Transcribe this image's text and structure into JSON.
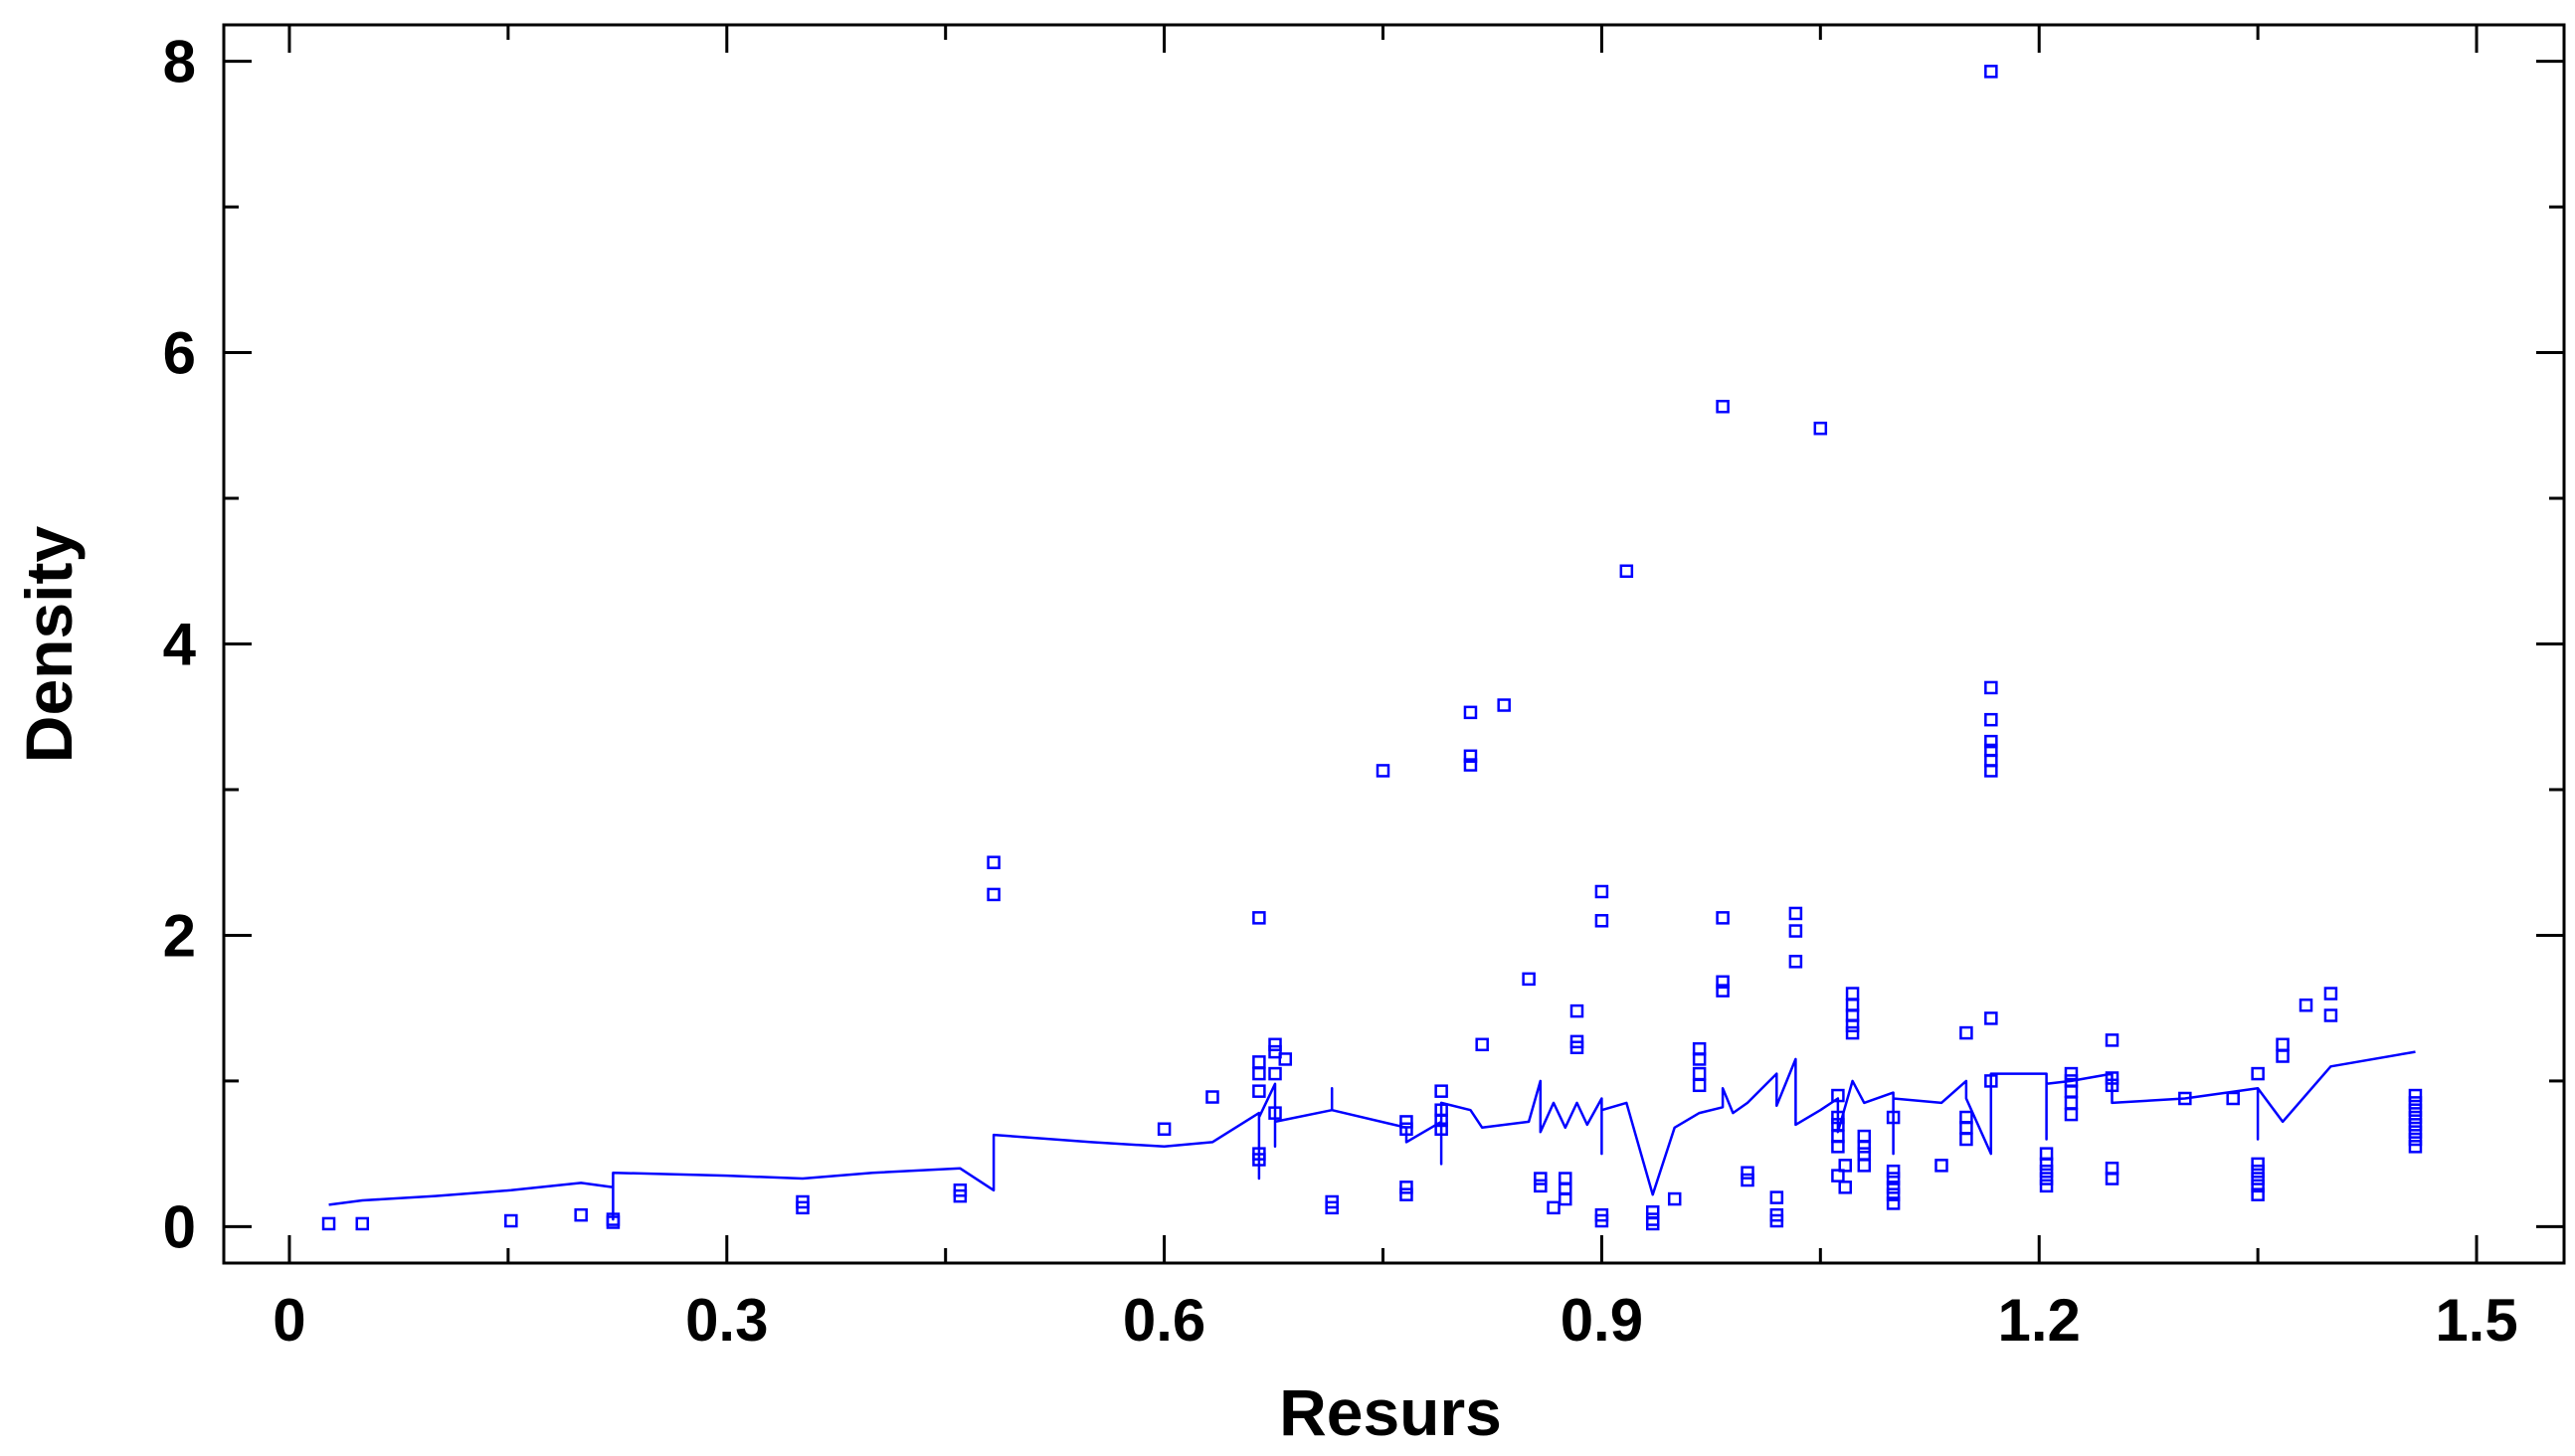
{
  "chart_data": {
    "type": "scatter",
    "xlabel": "Resurs",
    "ylabel": "Density",
    "xlim": [
      -0.045,
      1.56
    ],
    "ylim": [
      -0.25,
      8.25
    ],
    "x_ticks": [
      0,
      0.3,
      0.6,
      0.9,
      1.2,
      1.5
    ],
    "x_tick_labels": [
      "0",
      "0.3",
      "0.6",
      "0.9",
      "1.2",
      "1.5"
    ],
    "y_ticks": [
      0,
      2,
      4,
      6,
      8
    ],
    "y_tick_labels": [
      "0",
      "2",
      "4",
      "6",
      "8"
    ],
    "colors": {
      "series": "#0000ff",
      "axis": "#000000",
      "background": "#ffffff"
    },
    "grid": false,
    "series": [
      {
        "kind": "points",
        "marker": "square",
        "points": [
          [
            0.027,
            0.02
          ],
          [
            0.05,
            0.02
          ],
          [
            0.152,
            0.04
          ],
          [
            0.2,
            0.08
          ],
          [
            0.222,
            0.05
          ],
          [
            0.222,
            0.03
          ],
          [
            0.352,
            0.17
          ],
          [
            0.352,
            0.13
          ],
          [
            0.46,
            0.25
          ],
          [
            0.46,
            0.21
          ],
          [
            0.483,
            2.5
          ],
          [
            0.483,
            2.28
          ],
          [
            0.6,
            0.67
          ],
          [
            0.633,
            0.89
          ],
          [
            0.665,
            2.12
          ],
          [
            0.665,
            1.13
          ],
          [
            0.665,
            1.05
          ],
          [
            0.665,
            0.93
          ],
          [
            0.665,
            0.5
          ],
          [
            0.665,
            0.46
          ],
          [
            0.676,
            1.25
          ],
          [
            0.676,
            1.2
          ],
          [
            0.676,
            1.05
          ],
          [
            0.676,
            0.78
          ],
          [
            0.683,
            1.15
          ],
          [
            0.715,
            0.17
          ],
          [
            0.715,
            0.13
          ],
          [
            0.75,
            3.13
          ],
          [
            0.766,
            0.72
          ],
          [
            0.766,
            0.67
          ],
          [
            0.766,
            0.27
          ],
          [
            0.766,
            0.22
          ],
          [
            0.79,
            0.93
          ],
          [
            0.79,
            0.8
          ],
          [
            0.79,
            0.73
          ],
          [
            0.79,
            0.67
          ],
          [
            0.81,
            3.53
          ],
          [
            0.81,
            3.23
          ],
          [
            0.81,
            3.17
          ],
          [
            0.818,
            1.25
          ],
          [
            0.833,
            3.58
          ],
          [
            0.85,
            1.7
          ],
          [
            0.858,
            0.33
          ],
          [
            0.858,
            0.28
          ],
          [
            0.867,
            0.13
          ],
          [
            0.875,
            0.33
          ],
          [
            0.875,
            0.26
          ],
          [
            0.875,
            0.19
          ],
          [
            0.883,
            1.48
          ],
          [
            0.883,
            1.27
          ],
          [
            0.883,
            1.23
          ],
          [
            0.9,
            2.3
          ],
          [
            0.9,
            2.1
          ],
          [
            0.9,
            0.08
          ],
          [
            0.9,
            0.04
          ],
          [
            0.917,
            4.5
          ],
          [
            0.935,
            0.1
          ],
          [
            0.935,
            0.05
          ],
          [
            0.935,
            0.02
          ],
          [
            0.95,
            0.19
          ],
          [
            0.967,
            1.22
          ],
          [
            0.967,
            1.15
          ],
          [
            0.967,
            1.05
          ],
          [
            0.967,
            0.97
          ],
          [
            0.983,
            5.63
          ],
          [
            0.983,
            2.12
          ],
          [
            0.983,
            1.68
          ],
          [
            0.983,
            1.62
          ],
          [
            1.0,
            0.37
          ],
          [
            1.0,
            0.32
          ],
          [
            1.02,
            0.2
          ],
          [
            1.02,
            0.08
          ],
          [
            1.02,
            0.04
          ],
          [
            1.033,
            2.15
          ],
          [
            1.033,
            2.03
          ],
          [
            1.033,
            1.82
          ],
          [
            1.05,
            5.48
          ],
          [
            1.062,
            0.9
          ],
          [
            1.062,
            0.75
          ],
          [
            1.062,
            0.7
          ],
          [
            1.062,
            0.62
          ],
          [
            1.062,
            0.55
          ],
          [
            1.062,
            0.35
          ],
          [
            1.067,
            0.42
          ],
          [
            1.067,
            0.27
          ],
          [
            1.072,
            1.6
          ],
          [
            1.072,
            1.52
          ],
          [
            1.072,
            1.45
          ],
          [
            1.072,
            1.38
          ],
          [
            1.072,
            1.33
          ],
          [
            1.08,
            0.62
          ],
          [
            1.08,
            0.55
          ],
          [
            1.08,
            0.5
          ],
          [
            1.08,
            0.42
          ],
          [
            1.1,
            0.75
          ],
          [
            1.1,
            0.38
          ],
          [
            1.1,
            0.33
          ],
          [
            1.1,
            0.27
          ],
          [
            1.1,
            0.22
          ],
          [
            1.1,
            0.16
          ],
          [
            1.133,
            0.42
          ],
          [
            1.15,
            1.33
          ],
          [
            1.15,
            0.75
          ],
          [
            1.15,
            0.68
          ],
          [
            1.15,
            0.6
          ],
          [
            1.167,
            7.93
          ],
          [
            1.167,
            3.7
          ],
          [
            1.167,
            3.48
          ],
          [
            1.167,
            3.33
          ],
          [
            1.167,
            3.27
          ],
          [
            1.167,
            3.2
          ],
          [
            1.167,
            3.13
          ],
          [
            1.167,
            1.43
          ],
          [
            1.167,
            1.0
          ],
          [
            1.205,
            0.5
          ],
          [
            1.205,
            0.43
          ],
          [
            1.205,
            0.38
          ],
          [
            1.205,
            0.33
          ],
          [
            1.205,
            0.28
          ],
          [
            1.222,
            1.05
          ],
          [
            1.222,
            1.0
          ],
          [
            1.222,
            0.93
          ],
          [
            1.222,
            0.85
          ],
          [
            1.222,
            0.77
          ],
          [
            1.25,
            1.28
          ],
          [
            1.25,
            1.02
          ],
          [
            1.25,
            0.97
          ],
          [
            1.25,
            0.4
          ],
          [
            1.25,
            0.33
          ],
          [
            1.3,
            0.88
          ],
          [
            1.333,
            0.88
          ],
          [
            1.35,
            1.05
          ],
          [
            1.35,
            0.43
          ],
          [
            1.35,
            0.38
          ],
          [
            1.35,
            0.33
          ],
          [
            1.35,
            0.28
          ],
          [
            1.35,
            0.22
          ],
          [
            1.367,
            1.25
          ],
          [
            1.367,
            1.17
          ],
          [
            1.383,
            1.52
          ],
          [
            1.4,
            1.6
          ],
          [
            1.4,
            1.45
          ],
          [
            1.458,
            0.9
          ],
          [
            1.458,
            0.85
          ],
          [
            1.458,
            0.8
          ],
          [
            1.458,
            0.75
          ],
          [
            1.458,
            0.7
          ],
          [
            1.458,
            0.65
          ],
          [
            1.458,
            0.6
          ],
          [
            1.458,
            0.55
          ]
        ]
      },
      {
        "kind": "line",
        "points": [
          [
            0.027,
            0.15
          ],
          [
            0.05,
            0.18
          ],
          [
            0.1,
            0.21
          ],
          [
            0.152,
            0.25
          ],
          [
            0.2,
            0.3
          ],
          [
            0.222,
            0.27
          ],
          [
            0.222,
            0.05
          ],
          [
            0.222,
            0.37
          ],
          [
            0.3,
            0.35
          ],
          [
            0.352,
            0.33
          ],
          [
            0.4,
            0.37
          ],
          [
            0.46,
            0.4
          ],
          [
            0.483,
            0.25
          ],
          [
            0.483,
            0.63
          ],
          [
            0.55,
            0.58
          ],
          [
            0.6,
            0.55
          ],
          [
            0.633,
            0.58
          ],
          [
            0.665,
            0.78
          ],
          [
            0.665,
            0.33
          ],
          [
            0.665,
            0.75
          ],
          [
            0.676,
            0.98
          ],
          [
            0.676,
            0.55
          ],
          [
            0.676,
            0.72
          ],
          [
            0.715,
            0.8
          ],
          [
            0.715,
            0.95
          ],
          [
            0.715,
            0.8
          ],
          [
            0.766,
            0.68
          ],
          [
            0.766,
            0.58
          ],
          [
            0.79,
            0.72
          ],
          [
            0.79,
            0.43
          ],
          [
            0.79,
            0.85
          ],
          [
            0.81,
            0.8
          ],
          [
            0.818,
            0.68
          ],
          [
            0.85,
            0.72
          ],
          [
            0.858,
            1.0
          ],
          [
            0.858,
            0.65
          ],
          [
            0.867,
            0.85
          ],
          [
            0.875,
            0.68
          ],
          [
            0.883,
            0.85
          ],
          [
            0.89,
            0.7
          ],
          [
            0.9,
            0.88
          ],
          [
            0.9,
            0.5
          ],
          [
            0.9,
            0.8
          ],
          [
            0.917,
            0.85
          ],
          [
            0.935,
            0.22
          ],
          [
            0.95,
            0.68
          ],
          [
            0.967,
            0.78
          ],
          [
            0.983,
            0.82
          ],
          [
            0.983,
            0.95
          ],
          [
            0.99,
            0.78
          ],
          [
            1.0,
            0.85
          ],
          [
            1.02,
            1.05
          ],
          [
            1.02,
            0.83
          ],
          [
            1.033,
            1.15
          ],
          [
            1.033,
            0.7
          ],
          [
            1.05,
            0.8
          ],
          [
            1.062,
            0.88
          ],
          [
            1.062,
            0.65
          ],
          [
            1.072,
            1.0
          ],
          [
            1.08,
            0.85
          ],
          [
            1.1,
            0.92
          ],
          [
            1.1,
            0.5
          ],
          [
            1.1,
            0.88
          ],
          [
            1.133,
            0.85
          ],
          [
            1.15,
            1.0
          ],
          [
            1.15,
            0.88
          ],
          [
            1.167,
            0.5
          ],
          [
            1.167,
            1.05
          ],
          [
            1.205,
            1.05
          ],
          [
            1.205,
            0.6
          ],
          [
            1.205,
            0.98
          ],
          [
            1.222,
            1.0
          ],
          [
            1.25,
            1.05
          ],
          [
            1.25,
            0.85
          ],
          [
            1.3,
            0.88
          ],
          [
            1.35,
            0.95
          ],
          [
            1.35,
            0.6
          ],
          [
            1.35,
            0.95
          ],
          [
            1.367,
            0.72
          ],
          [
            1.4,
            1.1
          ],
          [
            1.458,
            1.2
          ]
        ]
      }
    ]
  }
}
